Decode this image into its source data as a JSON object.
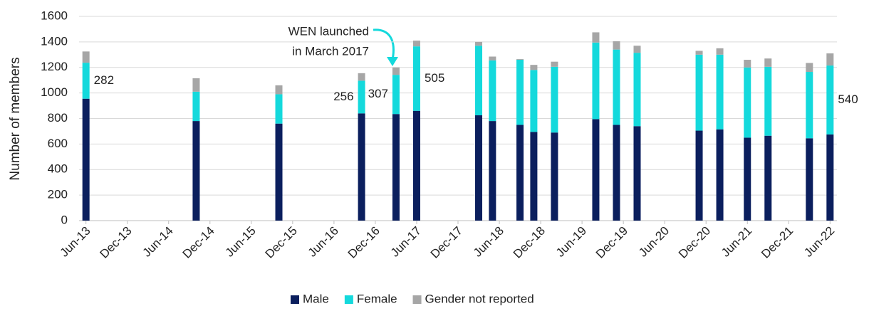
{
  "chart_data": {
    "type": "stacked_bar",
    "y_label": "Number of members",
    "annotation": [
      "WEN launched",
      "in March 2017"
    ],
    "x": [
      "2013-06",
      "2014-10",
      "2015-10",
      "2016-10",
      "2017-03",
      "2017-06",
      "2018-03",
      "2018-05",
      "2018-09",
      "2018-11",
      "2019-02",
      "2019-08",
      "2019-11",
      "2020-02",
      "2020-11",
      "2021-02",
      "2021-06",
      "2021-09",
      "2022-03",
      "2022-06"
    ],
    "series": [
      {
        "name": "Male",
        "color": "#0b1f5e",
        "values": [
          955,
          780,
          760,
          840,
          835,
          860,
          825,
          780,
          750,
          695,
          690,
          795,
          750,
          740,
          705,
          715,
          650,
          665,
          645,
          675
        ]
      },
      {
        "name": "Female",
        "color": "#14d9dc",
        "values": [
          282,
          230,
          230,
          256,
          307,
          505,
          545,
          475,
          510,
          485,
          515,
          600,
          590,
          575,
          595,
          585,
          550,
          540,
          520,
          540
        ],
        "value_labels": [
          "282",
          null,
          null,
          "256",
          "307",
          "505",
          null,
          null,
          null,
          null,
          null,
          null,
          null,
          null,
          null,
          null,
          null,
          null,
          null,
          "540"
        ]
      },
      {
        "name": "Gender not reported",
        "color": "#a6a6a6",
        "values": [
          88,
          105,
          70,
          59,
          58,
          45,
          30,
          30,
          5,
          40,
          40,
          80,
          65,
          55,
          30,
          50,
          60,
          65,
          70,
          95
        ]
      }
    ],
    "xlim": [
      "2013-05",
      "2022-07"
    ],
    "xticks": [
      {
        "value": "2013-06",
        "label": "Jun-13"
      },
      {
        "value": "2013-12",
        "label": "Dec-13"
      },
      {
        "value": "2014-06",
        "label": "Jun-14"
      },
      {
        "value": "2014-12",
        "label": "Dec-14"
      },
      {
        "value": "2015-06",
        "label": "Jun-15"
      },
      {
        "value": "2015-12",
        "label": "Dec-15"
      },
      {
        "value": "2016-06",
        "label": "Jun-16"
      },
      {
        "value": "2016-12",
        "label": "Dec-16"
      },
      {
        "value": "2017-06",
        "label": "Jun-17"
      },
      {
        "value": "2017-12",
        "label": "Dec-17"
      },
      {
        "value": "2018-06",
        "label": "Jun-18"
      },
      {
        "value": "2018-12",
        "label": "Dec-18"
      },
      {
        "value": "2019-06",
        "label": "Jun-19"
      },
      {
        "value": "2019-12",
        "label": "Dec-19"
      },
      {
        "value": "2020-06",
        "label": "Jun-20"
      },
      {
        "value": "2020-12",
        "label": "Dec-20"
      },
      {
        "value": "2021-06",
        "label": "Jun-21"
      },
      {
        "value": "2021-12",
        "label": "Dec-21"
      },
      {
        "value": "2022-06",
        "label": "Jun-22"
      }
    ],
    "ylim": [
      0,
      1600
    ],
    "yticks": [
      0,
      200,
      400,
      600,
      800,
      1000,
      1200,
      1400,
      1600
    ],
    "grid": true,
    "legend": "bottom"
  }
}
